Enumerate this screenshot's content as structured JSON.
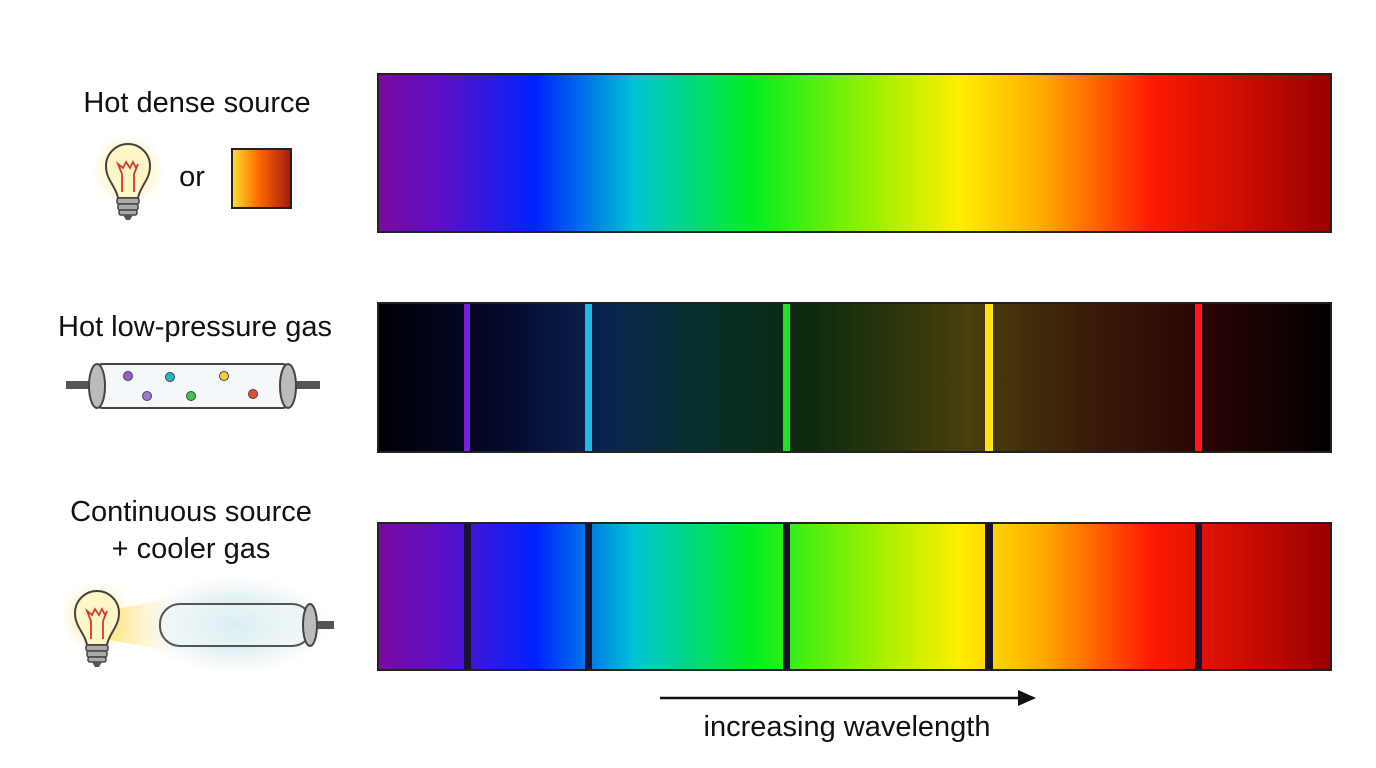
{
  "rows": [
    {
      "label": [
        "Hot dense source"
      ],
      "connector": "or"
    },
    {
      "label": [
        "Hot low-pressure gas"
      ]
    },
    {
      "label": [
        "Continuous source",
        "+ cooler gas"
      ]
    }
  ],
  "axis_label": "increasing wavelength"
}
